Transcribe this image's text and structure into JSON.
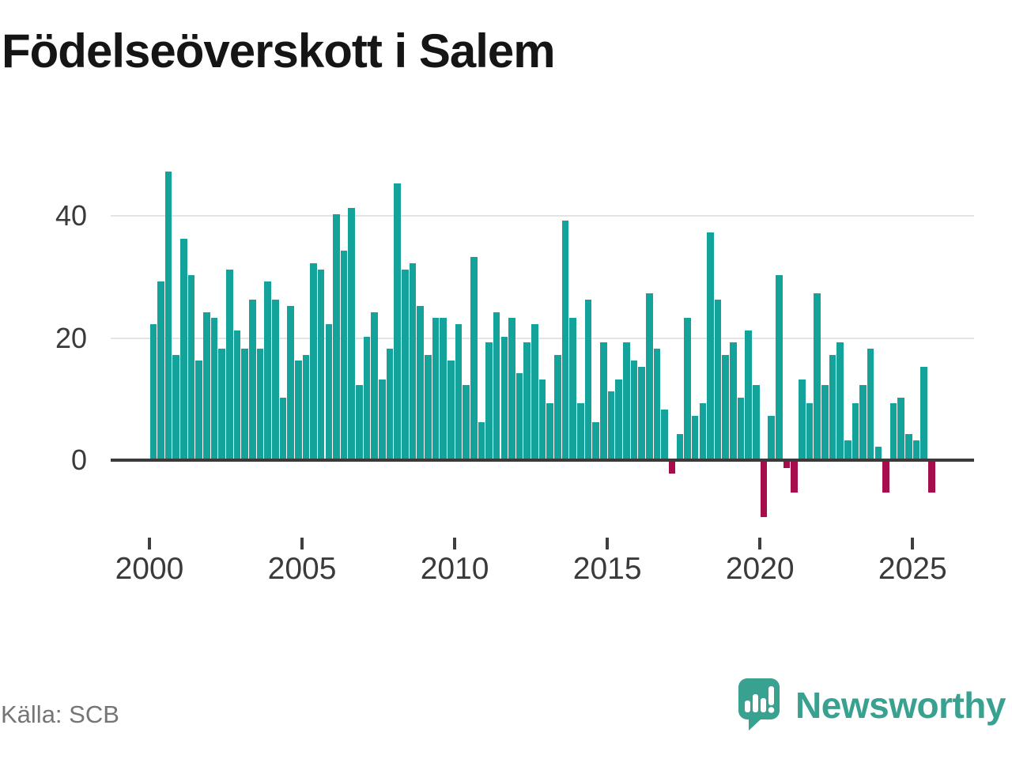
{
  "title": "Födelseöverskott i Salem",
  "source": "Källa: SCB",
  "branding": {
    "name": "Newsworthy",
    "icon": "newsworthy-speech-bubble-barchart-icon"
  },
  "colors": {
    "positive_bar": "#14a39a",
    "negative_bar": "#a50d4d",
    "axis_line": "#3b3b3b",
    "gridline": "#e3e3e3",
    "brand_teal": "#38a18f",
    "title_text": "#151515",
    "axis_text": "#3a3a3a",
    "source_text": "#757575"
  },
  "chart_data": {
    "type": "bar",
    "title": "Födelseöverskott i Salem",
    "x_unit": "quarter",
    "start_year": 2000,
    "start_quarter": 1,
    "end_period": "2025 Q3",
    "grid": "horizontal",
    "legend": "none",
    "y_ticks": [
      0,
      20,
      40
    ],
    "y_tick_labels": [
      "0",
      "20",
      "40"
    ],
    "x_tick_years": [
      2000,
      2005,
      2010,
      2015,
      2020,
      2025
    ],
    "x_tick_labels": [
      "2000",
      "2005",
      "2010",
      "2015",
      "2020",
      "2025"
    ],
    "ylim": [
      -12,
      50
    ],
    "series": [
      {
        "name": "Födelseöverskott",
        "values": [
          22,
          29,
          47,
          17,
          36,
          30,
          16,
          24,
          23,
          18,
          31,
          21,
          18,
          26,
          18,
          29,
          26,
          10,
          25,
          16,
          17,
          32,
          31,
          22,
          40,
          34,
          41,
          12,
          20,
          24,
          13,
          18,
          45,
          31,
          32,
          25,
          17,
          23,
          23,
          16,
          22,
          12,
          33,
          6,
          19,
          24,
          20,
          23,
          14,
          19,
          22,
          13,
          9,
          17,
          39,
          23,
          9,
          26,
          6,
          19,
          11,
          13,
          19,
          16,
          15,
          27,
          18,
          8,
          -2,
          4,
          23,
          7,
          9,
          37,
          26,
          17,
          19,
          10,
          21,
          12,
          -9,
          7,
          30,
          -1,
          -5,
          13,
          9,
          27,
          12,
          17,
          19,
          3,
          9,
          12,
          18,
          2,
          -5,
          9,
          10,
          4,
          3,
          15,
          -5
        ]
      }
    ]
  }
}
